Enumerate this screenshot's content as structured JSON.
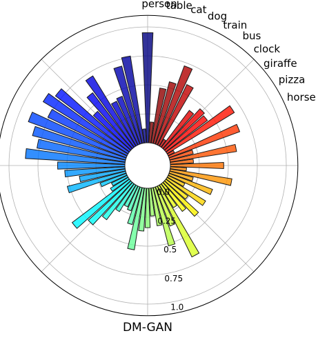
{
  "chart_data": {
    "type": "bar",
    "subtype": "polar",
    "title": "DM-GAN",
    "r_ticks": [
      "0.0",
      "0.25",
      "0.5",
      "0.75",
      "1.0"
    ],
    "r_tick_values": [
      0,
      0.25,
      0.5,
      0.75,
      1.0
    ],
    "r_lim": [
      0,
      1.1
    ],
    "grid": true,
    "labeled_categories": [
      "person",
      "table",
      "cat",
      "dog",
      "train",
      "bus",
      "clock",
      "giraffe",
      "pizza",
      "horse"
    ],
    "values": [
      0.95,
      0.12,
      0.76,
      0.69,
      0.44,
      0.42,
      0.71,
      0.59,
      0.44,
      0.8,
      0.86,
      0.76,
      0.9,
      0.83,
      0.77,
      0.86,
      0.58,
      0.52,
      0.4,
      0.52,
      0.24,
      0.15,
      0.18,
      0.62,
      0.5,
      0.39,
      0.27,
      0.2,
      0.22,
      0.33,
      0.54,
      0.37,
      0.34,
      0.24,
      0.33,
      0.52,
      0.36,
      0.68,
      0.23,
      0.3,
      0.4,
      0.24,
      0.39,
      0.16,
      0.4,
      0.21,
      0.54,
      0.14,
      0.46,
      0.2,
      0.58,
      0.21,
      0.65,
      0.06,
      0.68,
      0.45,
      0.47,
      0.4,
      0.07,
      0.58,
      0.72,
      0.55,
      0.48,
      0.18
    ]
  }
}
